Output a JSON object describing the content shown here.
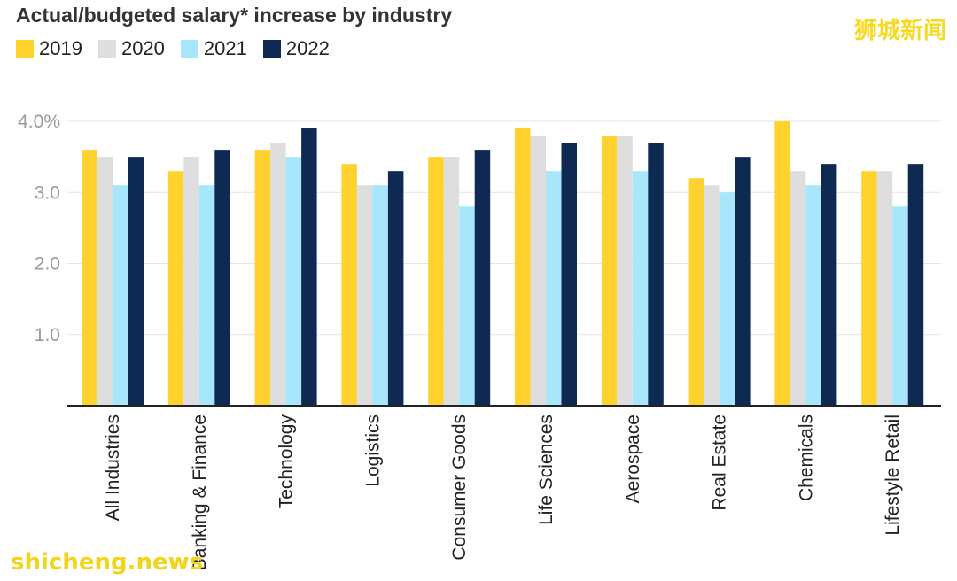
{
  "chart_data": {
    "type": "bar",
    "title": "Actual/budgeted salary* increase by industry",
    "categories": [
      "All Industries",
      "Banking & Finance",
      "Technology",
      "Logistics",
      "Consumer Goods",
      "Life Sciences",
      "Aerospace",
      "Real Estate",
      "Chemicals",
      "Lifestyle Retail"
    ],
    "series": [
      {
        "name": "2019",
        "color": "#ffd22e",
        "values": [
          3.6,
          3.3,
          3.6,
          3.4,
          3.5,
          3.9,
          3.8,
          3.2,
          4.0,
          3.3
        ]
      },
      {
        "name": "2020",
        "color": "#dedede",
        "values": [
          3.5,
          3.5,
          3.7,
          3.1,
          3.5,
          3.8,
          3.8,
          3.1,
          3.3,
          3.3
        ]
      },
      {
        "name": "2021",
        "color": "#a8e6fb",
        "values": [
          3.1,
          3.1,
          3.5,
          3.1,
          2.8,
          3.3,
          3.3,
          3.0,
          3.1,
          2.8
        ]
      },
      {
        "name": "2022",
        "color": "#0f2a52",
        "values": [
          3.5,
          3.6,
          3.9,
          3.3,
          3.6,
          3.7,
          3.7,
          3.5,
          3.4,
          3.4
        ]
      }
    ],
    "yticks": [
      1.0,
      2.0,
      3.0,
      4.0
    ],
    "ytick_labels": [
      "1.0",
      "2.0",
      "3.0",
      "4.0%"
    ],
    "ylim": [
      0,
      4.0
    ],
    "grid": true,
    "legend": "top-left"
  },
  "watermarks": {
    "top_right": "狮城新闻",
    "bottom_left": "shicheng.news"
  }
}
